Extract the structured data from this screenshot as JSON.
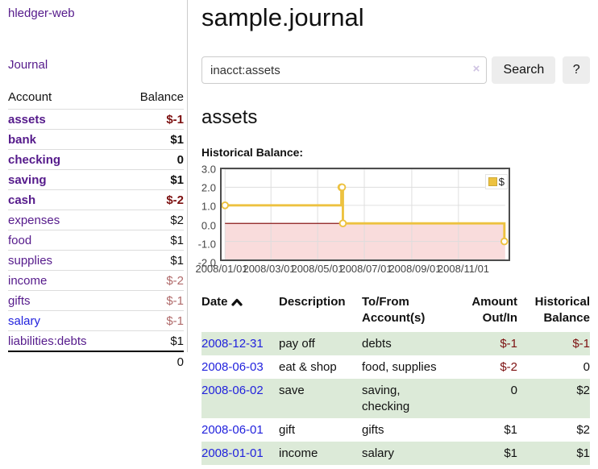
{
  "app": {
    "brand": "hledger-web",
    "nav": {
      "journal": "Journal"
    }
  },
  "sidebar": {
    "header": {
      "account": "Account",
      "balance": "Balance"
    },
    "rows": [
      {
        "name": "assets",
        "balance": "$-1",
        "depth": 1,
        "bold": true,
        "neg": "strong"
      },
      {
        "name": "bank",
        "balance": "$1",
        "depth": 2,
        "bold": true,
        "neg": "none"
      },
      {
        "name": "checking",
        "balance": "0",
        "depth": 3,
        "bold": true,
        "neg": "none"
      },
      {
        "name": "saving",
        "balance": "$1",
        "depth": 3,
        "bold": true,
        "neg": "none"
      },
      {
        "name": "cash",
        "balance": "$-2",
        "depth": 2,
        "bold": true,
        "neg": "strong"
      },
      {
        "name": "expenses",
        "balance": "$2",
        "depth": 1,
        "bold": false,
        "neg": "none"
      },
      {
        "name": "food",
        "balance": "$1",
        "depth": 2,
        "bold": false,
        "neg": "none"
      },
      {
        "name": "supplies",
        "balance": "$1",
        "depth": 2,
        "bold": false,
        "neg": "none"
      },
      {
        "name": "income",
        "balance": "$-2",
        "depth": 1,
        "bold": false,
        "neg": "dim"
      },
      {
        "name": "gifts",
        "balance": "$-1",
        "depth": 2,
        "bold": false,
        "neg": "dim"
      },
      {
        "name": "salary",
        "balance": "$-1",
        "depth": 2,
        "bold": false,
        "neg": "dim",
        "link_color": "blue"
      },
      {
        "name": "liabilities:debts",
        "balance": "$1",
        "depth": 1,
        "bold": false,
        "neg": "none"
      }
    ],
    "total": "0"
  },
  "main": {
    "title": "sample.journal",
    "search": {
      "value": "inacct:assets",
      "clear_icon": "×",
      "search_button": "Search",
      "help_button": "?"
    },
    "account_heading": "assets",
    "chart_label": "Historical Balance:"
  },
  "chart_data": {
    "type": "line",
    "step": true,
    "title": "Historical Balance:",
    "series": [
      {
        "name": "$",
        "points": [
          [
            "2008-01-01",
            1
          ],
          [
            "2008-06-01",
            2
          ],
          [
            "2008-06-02",
            2
          ],
          [
            "2008-06-03",
            0
          ],
          [
            "2008-12-31",
            -1
          ]
        ]
      }
    ],
    "x_range": [
      "2008-01-01",
      "2008-12-31"
    ],
    "ylim": [
      -2,
      3
    ],
    "yticks": [
      {
        "value": 3,
        "label": "3.0"
      },
      {
        "value": 2,
        "label": "2.0"
      },
      {
        "value": 1,
        "label": "1.0"
      },
      {
        "value": 0,
        "label": "0.0"
      },
      {
        "value": -1,
        "label": "-1.0"
      },
      {
        "value": -2,
        "label": "-2.0"
      }
    ],
    "xticks": [
      {
        "date": "2008-01-01",
        "label": "2008/01/01"
      },
      {
        "date": "2008-03-01",
        "label": "2008/03/01"
      },
      {
        "date": "2008-05-01",
        "label": "2008/05/01"
      },
      {
        "date": "2008-07-01",
        "label": "2008/07/01"
      },
      {
        "date": "2008-09-01",
        "label": "2008/09/01"
      },
      {
        "date": "2008-11-01",
        "label": "2008/11/01"
      }
    ],
    "legend": {
      "label": "$",
      "position": "top-right"
    },
    "grid": true
  },
  "register": {
    "headers": [
      "Date",
      "Description",
      "To/From\nAccount(s)",
      "Amount\nOut/In",
      "Historical\nBalance"
    ],
    "sort": {
      "column": "Date",
      "direction": "ascending"
    },
    "rows": [
      {
        "date": "2008-12-31",
        "description": "pay off",
        "accounts": "debts",
        "amount": "$-1",
        "balance": "$-1"
      },
      {
        "date": "2008-06-03",
        "description": "eat & shop",
        "accounts": "food, supplies",
        "amount": "$-2",
        "balance": "0"
      },
      {
        "date": "2008-06-02",
        "description": "save",
        "accounts": "saving,\nchecking",
        "amount": "0",
        "balance": "$2"
      },
      {
        "date": "2008-06-01",
        "description": "gift",
        "accounts": "gifts",
        "amount": "$1",
        "balance": "$2"
      },
      {
        "date": "2008-01-01",
        "description": "income",
        "accounts": "salary",
        "amount": "$1",
        "balance": "$1"
      }
    ]
  },
  "colors": {
    "accent_purple": "#551a8b",
    "link_blue": "#2222dd",
    "negative": "#7c1010",
    "negative_dim": "#b06a6a",
    "row_green": "#dcead8",
    "series_yellow": "#edc240",
    "zero_line_red": "#8b1a1a",
    "negative_region_pink": "#f9dcdc",
    "grid_gray": "#dddddd",
    "plot_border": "#4d4d4d"
  }
}
